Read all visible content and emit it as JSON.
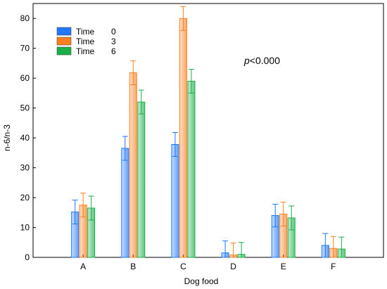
{
  "chart_data": {
    "type": "bar",
    "categories": [
      "A",
      "B",
      "C",
      "D",
      "E",
      "F"
    ],
    "series": [
      {
        "name": "Time",
        "legend_value": "0",
        "color": "#1f78ff",
        "values": [
          15.2,
          36.5,
          37.8,
          1.5,
          14.0,
          4.0
        ],
        "errors": [
          4.0,
          4.0,
          4.0,
          4.0,
          3.8,
          4.0
        ]
      },
      {
        "name": "Time",
        "legend_value": "3",
        "color": "#ff7f1e",
        "values": [
          17.5,
          61.8,
          80.0,
          0.8,
          14.5,
          3.0
        ],
        "errors": [
          4.0,
          4.0,
          4.0,
          4.0,
          4.0,
          4.0
        ]
      },
      {
        "name": "Time",
        "legend_value": "6",
        "color": "#19b04a",
        "values": [
          16.5,
          52.0,
          59.0,
          1.0,
          13.2,
          2.8
        ],
        "errors": [
          4.0,
          4.0,
          4.0,
          4.0,
          4.0,
          4.0
        ]
      }
    ],
    "xlabel": "Dog food",
    "ylabel": "n-6/n-3",
    "ylim": [
      0,
      85
    ],
    "yticks": [
      0,
      10,
      20,
      30,
      40,
      50,
      60,
      70,
      80
    ],
    "annotation_prefix": "p",
    "annotation_suffix": "<0.000",
    "legend_position": "top-left",
    "grid": false
  }
}
